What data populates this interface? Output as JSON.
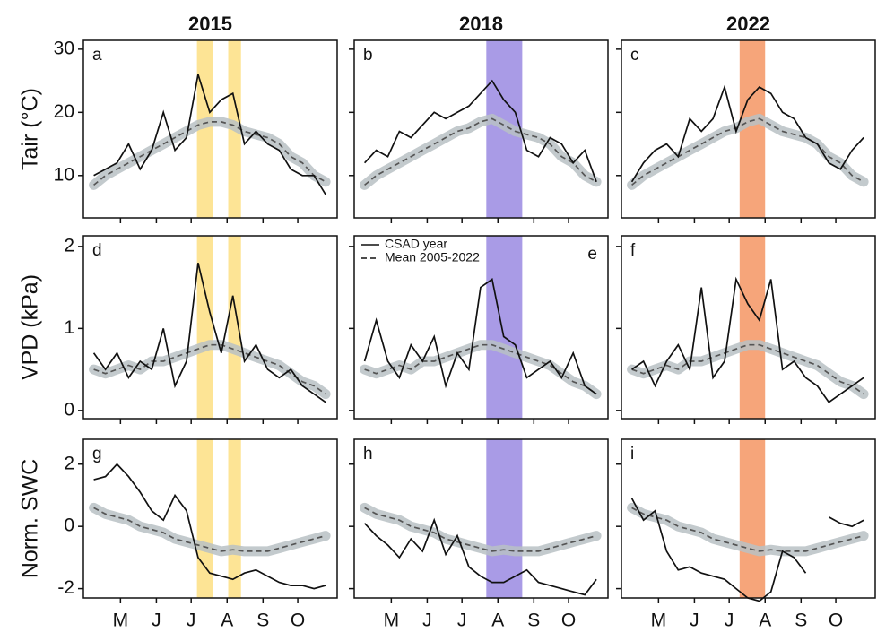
{
  "chart_data": [
    {
      "type": "line",
      "title": "2015",
      "ylabel": "Tair (°C)",
      "label": "a",
      "x": [
        112,
        122,
        132,
        142,
        152,
        162,
        172,
        182,
        192,
        202,
        212,
        222,
        232,
        242,
        252,
        262,
        272,
        282,
        292,
        302,
        312
      ],
      "series": [
        {
          "color": "#111111",
          "style": "solid",
          "values": [
            10,
            11,
            12,
            15,
            11,
            14,
            20,
            14,
            16,
            26,
            20,
            22,
            23,
            15,
            17,
            15,
            14,
            11,
            10,
            10,
            7
          ]
        },
        {
          "color": "#555555",
          "style": "dashed",
          "band": true,
          "values": [
            8.5,
            10,
            11,
            12,
            13,
            14,
            15,
            16,
            17,
            18,
            18.5,
            18.5,
            18,
            17,
            16.5,
            16,
            15,
            13,
            12,
            10,
            9
          ]
        }
      ],
      "highlights": [
        [
          201,
          215
        ],
        [
          228,
          239
        ]
      ],
      "highlight_color": "#fde495",
      "xlim": [
        103,
        322
      ],
      "ylim": [
        3.3,
        31.4
      ],
      "yticks": [
        10,
        20,
        30
      ]
    },
    {
      "type": "line",
      "title": "2018",
      "label": "b",
      "x": [
        112,
        122,
        132,
        142,
        152,
        162,
        172,
        182,
        192,
        202,
        212,
        222,
        232,
        242,
        252,
        262,
        272,
        282,
        292,
        302,
        312
      ],
      "series": [
        {
          "color": "#111111",
          "style": "solid",
          "values": [
            12,
            14,
            13,
            17,
            16,
            18,
            20,
            19,
            20,
            21,
            23,
            25,
            22,
            20,
            14,
            13,
            16,
            15,
            12,
            14,
            9
          ]
        },
        {
          "color": "#555555",
          "style": "dashed",
          "band": true,
          "values": [
            8.5,
            10,
            11,
            12,
            13,
            14,
            15,
            16,
            17,
            17.5,
            18.5,
            19,
            18,
            17,
            16.5,
            16,
            15,
            13,
            12,
            10,
            9
          ]
        }
      ],
      "highlights": [
        [
          217,
          248
        ]
      ],
      "highlight_color": "#a99be6",
      "xlim": [
        103,
        322
      ],
      "ylim": [
        3.3,
        31.4
      ]
    },
    {
      "type": "line",
      "title": "2022",
      "label": "c",
      "x": [
        112,
        122,
        132,
        142,
        152,
        162,
        172,
        182,
        192,
        202,
        212,
        222,
        232,
        242,
        252,
        262,
        272,
        282,
        292,
        302,
        312
      ],
      "series": [
        {
          "color": "#111111",
          "style": "solid",
          "values": [
            9,
            12,
            14,
            15,
            13,
            19,
            17,
            19,
            24,
            17,
            22,
            24,
            23,
            20,
            19,
            16,
            15,
            12,
            11,
            14,
            16
          ]
        },
        {
          "color": "#555555",
          "style": "dashed",
          "band": true,
          "values": [
            8.5,
            10,
            11,
            12,
            13,
            14,
            15,
            16,
            17,
            17.5,
            18.5,
            19,
            18,
            17,
            16.5,
            16,
            15,
            13,
            12,
            10,
            9
          ]
        }
      ],
      "highlights": [
        [
          205,
          227
        ]
      ],
      "highlight_color": "#f6a57a",
      "xlim": [
        103,
        322
      ],
      "ylim": [
        3.3,
        31.4
      ]
    },
    {
      "type": "line",
      "ylabel": "VPD (kPa)",
      "label": "d",
      "x": [
        112,
        122,
        132,
        142,
        152,
        162,
        172,
        182,
        192,
        202,
        212,
        222,
        232,
        242,
        252,
        262,
        272,
        282,
        292,
        302,
        312
      ],
      "series": [
        {
          "color": "#111111",
          "style": "solid",
          "values": [
            0.7,
            0.5,
            0.7,
            0.4,
            0.6,
            0.5,
            1.0,
            0.3,
            0.6,
            1.8,
            1.2,
            0.7,
            1.4,
            0.6,
            0.8,
            0.5,
            0.4,
            0.5,
            0.3,
            0.2,
            0.1
          ]
        },
        {
          "color": "#555555",
          "style": "dashed",
          "band": true,
          "values": [
            0.5,
            0.45,
            0.5,
            0.55,
            0.5,
            0.6,
            0.6,
            0.65,
            0.7,
            0.75,
            0.8,
            0.8,
            0.75,
            0.7,
            0.65,
            0.6,
            0.55,
            0.45,
            0.35,
            0.3,
            0.2
          ]
        }
      ],
      "highlights": [
        [
          201,
          215
        ],
        [
          228,
          239
        ]
      ],
      "highlight_color": "#fde495",
      "xlim": [
        103,
        322
      ],
      "ylim": [
        -0.1,
        2.13
      ],
      "yticks": [
        0,
        1,
        2
      ]
    },
    {
      "type": "line",
      "label": "e",
      "legend": "upper left",
      "x": [
        112,
        122,
        132,
        142,
        152,
        162,
        172,
        182,
        192,
        202,
        212,
        222,
        232,
        242,
        252,
        262,
        272,
        282,
        292,
        302,
        312
      ],
      "series": [
        {
          "name": "CSAD year",
          "color": "#111111",
          "style": "solid",
          "values": [
            0.6,
            1.1,
            0.6,
            0.4,
            0.8,
            0.6,
            0.9,
            0.3,
            0.7,
            0.5,
            1.5,
            1.6,
            0.9,
            0.8,
            0.4,
            0.5,
            0.6,
            0.4,
            0.7,
            0.3,
            0.2
          ]
        },
        {
          "name": "Mean 2005-2022",
          "color": "#555555",
          "style": "dashed",
          "band": true,
          "values": [
            0.5,
            0.45,
            0.5,
            0.55,
            0.5,
            0.6,
            0.6,
            0.65,
            0.7,
            0.75,
            0.8,
            0.8,
            0.75,
            0.7,
            0.65,
            0.6,
            0.55,
            0.45,
            0.35,
            0.3,
            0.2
          ]
        }
      ],
      "highlights": [
        [
          217,
          248
        ]
      ],
      "highlight_color": "#a99be6",
      "xlim": [
        103,
        322
      ],
      "ylim": [
        -0.1,
        2.13
      ]
    },
    {
      "type": "line",
      "label": "f",
      "x": [
        112,
        122,
        132,
        142,
        152,
        162,
        172,
        182,
        192,
        202,
        212,
        222,
        232,
        242,
        252,
        262,
        272,
        282,
        292,
        302,
        312
      ],
      "series": [
        {
          "color": "#111111",
          "style": "solid",
          "values": [
            0.5,
            0.6,
            0.3,
            0.6,
            0.8,
            0.5,
            1.5,
            0.4,
            0.6,
            1.6,
            1.3,
            1.1,
            1.6,
            0.5,
            0.6,
            0.4,
            0.3,
            0.1,
            0.2,
            0.3,
            0.4
          ]
        },
        {
          "color": "#555555",
          "style": "dashed",
          "band": true,
          "values": [
            0.5,
            0.45,
            0.5,
            0.55,
            0.5,
            0.6,
            0.6,
            0.65,
            0.7,
            0.75,
            0.8,
            0.8,
            0.75,
            0.7,
            0.65,
            0.6,
            0.55,
            0.45,
            0.35,
            0.3,
            0.2
          ]
        }
      ],
      "highlights": [
        [
          205,
          227
        ]
      ],
      "highlight_color": "#f6a57a",
      "xlim": [
        103,
        322
      ],
      "ylim": [
        -0.1,
        2.13
      ]
    },
    {
      "type": "line",
      "ylabel": "Norm. SWC",
      "label": "g",
      "x": [
        112,
        122,
        132,
        142,
        152,
        162,
        172,
        182,
        192,
        202,
        212,
        222,
        232,
        242,
        252,
        262,
        272,
        282,
        292,
        302,
        312
      ],
      "series": [
        {
          "color": "#111111",
          "style": "solid",
          "values": [
            1.5,
            1.6,
            2.0,
            1.6,
            1.1,
            0.5,
            0.2,
            1.0,
            0.5,
            -1.0,
            -1.5,
            -1.6,
            -1.7,
            -1.5,
            -1.4,
            -1.6,
            -1.8,
            -1.9,
            -1.9,
            -2.0,
            -1.9
          ]
        },
        {
          "color": "#555555",
          "style": "dashed",
          "band": true,
          "values": [
            0.6,
            0.4,
            0.3,
            0.2,
            0.0,
            -0.1,
            -0.2,
            -0.4,
            -0.5,
            -0.6,
            -0.7,
            -0.8,
            -0.75,
            -0.8,
            -0.8,
            -0.8,
            -0.7,
            -0.6,
            -0.5,
            -0.4,
            -0.3
          ]
        }
      ],
      "highlights": [
        [
          201,
          215
        ],
        [
          228,
          239
        ]
      ],
      "highlight_color": "#fde495",
      "xlim": [
        103,
        322
      ],
      "ylim": [
        -2.3,
        2.8
      ],
      "yticks": [
        -2,
        0,
        2
      ],
      "xticks": [
        {
          "value": 135,
          "label": "M"
        },
        {
          "value": 166,
          "label": "J"
        },
        {
          "value": 196,
          "label": "J"
        },
        {
          "value": 227,
          "label": "A"
        },
        {
          "value": 258,
          "label": "S"
        },
        {
          "value": 288,
          "label": "O"
        }
      ]
    },
    {
      "type": "line",
      "label": "h",
      "x": [
        112,
        122,
        132,
        142,
        152,
        162,
        172,
        182,
        192,
        202,
        212,
        222,
        232,
        242,
        252,
        262,
        272,
        282,
        292,
        302,
        312
      ],
      "series": [
        {
          "color": "#111111",
          "style": "solid",
          "values": [
            0.1,
            -0.3,
            -0.6,
            -1.0,
            -0.4,
            -0.8,
            0.2,
            -0.9,
            -0.3,
            -1.3,
            -1.6,
            -1.8,
            -1.8,
            -1.6,
            -1.4,
            -1.8,
            -1.9,
            -2.0,
            -2.1,
            -2.2,
            -1.7
          ]
        },
        {
          "color": "#555555",
          "style": "dashed",
          "band": true,
          "values": [
            0.6,
            0.4,
            0.3,
            0.2,
            0.0,
            -0.1,
            -0.2,
            -0.4,
            -0.5,
            -0.6,
            -0.7,
            -0.8,
            -0.75,
            -0.8,
            -0.8,
            -0.8,
            -0.7,
            -0.6,
            -0.5,
            -0.4,
            -0.3
          ]
        }
      ],
      "highlights": [
        [
          217,
          248
        ]
      ],
      "highlight_color": "#a99be6",
      "xlim": [
        103,
        322
      ],
      "ylim": [
        -2.3,
        2.8
      ],
      "xticks": [
        {
          "value": 135,
          "label": "M"
        },
        {
          "value": 166,
          "label": "J"
        },
        {
          "value": 196,
          "label": "J"
        },
        {
          "value": 227,
          "label": "A"
        },
        {
          "value": 258,
          "label": "S"
        },
        {
          "value": 288,
          "label": "O"
        }
      ]
    },
    {
      "type": "line",
      "label": "i",
      "x": [
        112,
        122,
        132,
        142,
        152,
        162,
        172,
        182,
        192,
        202,
        212,
        222,
        232,
        242,
        252,
        262,
        272,
        282,
        292,
        302,
        312
      ],
      "series": [
        {
          "color": "#111111",
          "style": "solid",
          "values": [
            0.9,
            0.2,
            0.5,
            -0.8,
            -1.4,
            -1.3,
            -1.5,
            -1.6,
            -1.7,
            -2.0,
            -2.3,
            -2.4,
            -2.1,
            -0.8,
            -1.0,
            -1.5,
            null,
            0.3,
            0.1,
            0.0,
            0.2
          ]
        },
        {
          "color": "#555555",
          "style": "dashed",
          "band": true,
          "values": [
            0.6,
            0.4,
            0.3,
            0.2,
            0.0,
            -0.1,
            -0.2,
            -0.4,
            -0.5,
            -0.6,
            -0.7,
            -0.8,
            -0.75,
            -0.8,
            -0.8,
            -0.8,
            -0.7,
            -0.6,
            -0.5,
            -0.4,
            -0.3
          ]
        }
      ],
      "highlights": [
        [
          205,
          227
        ]
      ],
      "highlight_color": "#f6a57a",
      "xlim": [
        103,
        322
      ],
      "ylim": [
        -2.3,
        2.8
      ],
      "xticks": [
        {
          "value": 135,
          "label": "M"
        },
        {
          "value": 166,
          "label": "J"
        },
        {
          "value": 196,
          "label": "J"
        },
        {
          "value": 227,
          "label": "A"
        },
        {
          "value": 258,
          "label": "S"
        },
        {
          "value": 288,
          "label": "O"
        }
      ]
    }
  ]
}
